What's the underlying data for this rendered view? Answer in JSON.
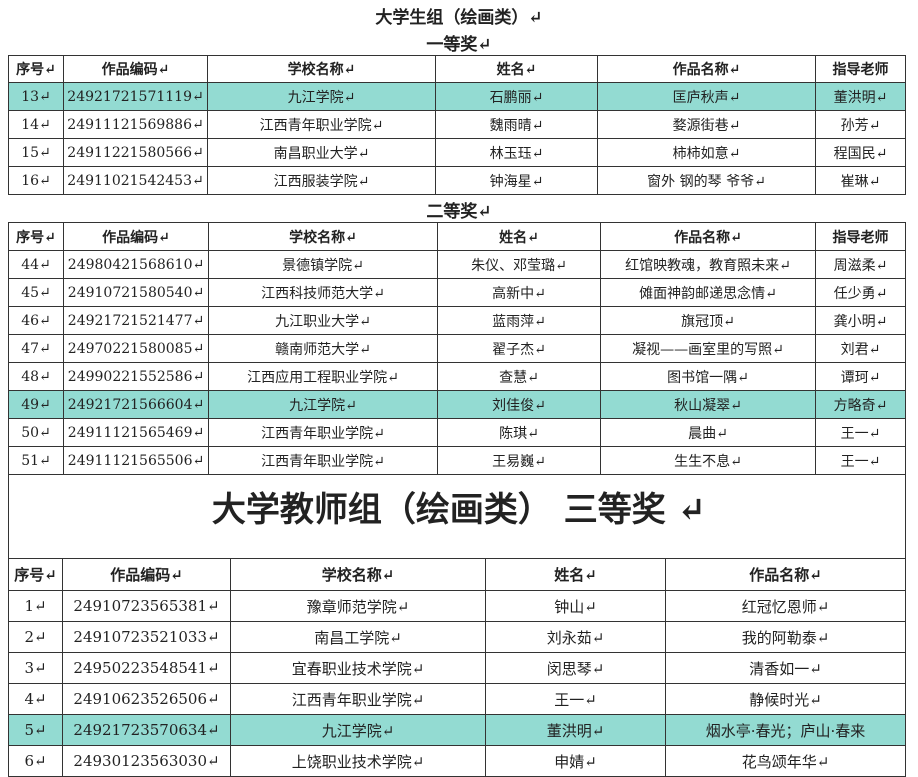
{
  "student_group": {
    "title": "大学生组（绘画类）↵",
    "first_prize": {
      "award": "一等奖↵",
      "header": [
        "序号↵",
        "作品编码↵",
        "学校名称↵",
        "姓名↵",
        "作品名称↵",
        "指导老师"
      ],
      "rows": [
        [
          "13↵",
          "24921721571119↵",
          "九江学院↵",
          "石鹏丽↵",
          "匡庐秋声↵",
          "董洪明↵"
        ],
        [
          "14↵",
          "24911121569886↵",
          "江西青年职业学院↵",
          "魏雨晴↵",
          "婺源街巷↵",
          "孙芳↵"
        ],
        [
          "15↵",
          "24911221580566↵",
          "南昌职业大学↵",
          "林玉珏↵",
          "柿柿如意↵",
          "程国民↵"
        ],
        [
          "16↵",
          "24911021542453↵",
          "江西服装学院↵",
          "钟海星↵",
          "窗外 钢的琴 爷爷↵",
          "崔琳↵"
        ]
      ]
    },
    "second_prize": {
      "award": "二等奖↵",
      "header": [
        "序号↵",
        "作品编码↵",
        "学校名称↵",
        "姓名↵",
        "作品名称↵",
        "指导老师"
      ],
      "rows": [
        [
          "44↵",
          "24980421568610↵",
          "景德镇学院↵",
          "朱仪、邓莹璐↵",
          "红馆映教魂，教育照未来↵",
          "周滋柔↵"
        ],
        [
          "45↵",
          "24910721580540↵",
          "江西科技师范大学↵",
          "高新中↵",
          "傩面神韵邮递思念情↵",
          "任少勇↵"
        ],
        [
          "46↵",
          "24921721521477↵",
          "九江职业大学↵",
          "蓝雨萍↵",
          "旗冠顶↵",
          "龚小明↵"
        ],
        [
          "47↵",
          "24970221580085↵",
          "赣南师范大学↵",
          "翟子杰↵",
          "凝视——画室里的写照↵",
          "刘君↵"
        ],
        [
          "48↵",
          "24990221552586↵",
          "江西应用工程职业学院↵",
          "查慧↵",
          "图书馆一隅↵",
          "谭珂↵"
        ],
        [
          "49↵",
          "24921721566604↵",
          "九江学院↵",
          "刘佳俊↵",
          "秋山凝翠↵",
          "方略奇↵"
        ],
        [
          "50↵",
          "24911121565469↵",
          "江西青年职业学院↵",
          "陈琪↵",
          "晨曲↵",
          "王一↵"
        ],
        [
          "51↵",
          "24911121565506↵",
          "江西青年职业学院↵",
          "王易巍↵",
          "生生不息↵",
          "王一↵"
        ]
      ]
    }
  },
  "teacher_group": {
    "title": "大学教师组（绘画类） 三等奖 ↵",
    "third_prize": {
      "header": [
        "序号↵",
        "作品编码↵",
        "学校名称↵",
        "姓名↵",
        "作品名称↵"
      ],
      "rows": [
        [
          "1↵",
          "24910723565381↵",
          "豫章师范学院↵",
          "钟山↵",
          "红冠忆恩师↵"
        ],
        [
          "2↵",
          "24910723521033↵",
          "南昌工学院↵",
          "刘永茹↵",
          "我的阿勒泰↵"
        ],
        [
          "3↵",
          "24950223548541↵",
          "宜春职业技术学院↵",
          "闵思琴↵",
          "清香如一↵"
        ],
        [
          "4↵",
          "24910623526506↵",
          "江西青年职业学院↵",
          "王一↵",
          "静候时光↵"
        ],
        [
          "5↵",
          "24921723570634↵",
          "九江学院↵",
          "董洪明↵",
          "烟水亭·春光；庐山·春来"
        ],
        [
          "6↵",
          "24930123563030↵",
          "上饶职业技术学院↵",
          "申婧↵",
          "花鸟颂年华↵"
        ]
      ]
    }
  }
}
